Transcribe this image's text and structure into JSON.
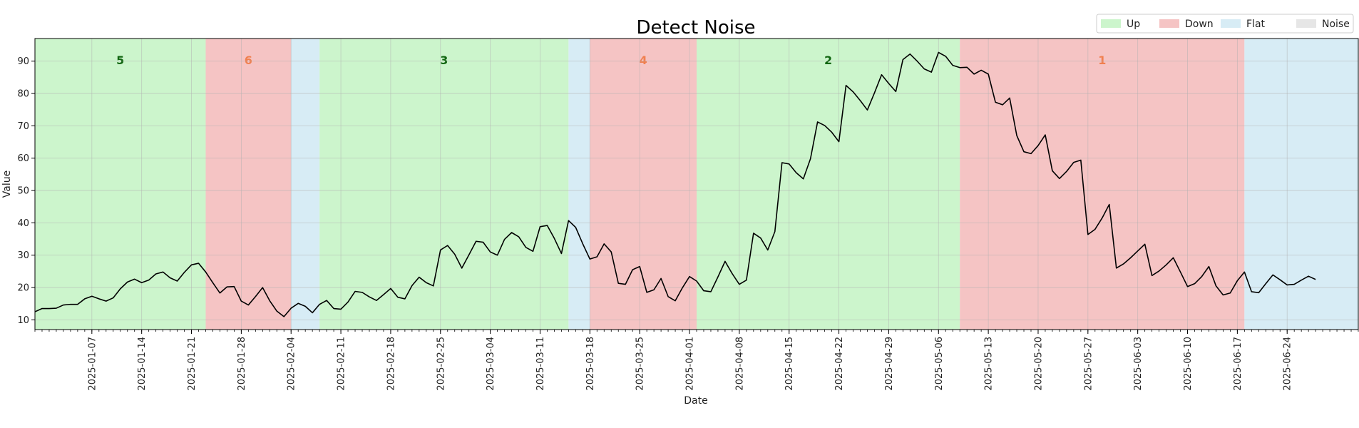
{
  "chart_data": {
    "type": "line",
    "title": "Detect Noise",
    "xlabel": "Date",
    "ylabel": "Value",
    "ylim": [
      7,
      97
    ],
    "xlim": [
      "2024-12-30",
      "2025-07-04"
    ],
    "yticks": [
      10,
      20,
      30,
      40,
      50,
      60,
      70,
      80,
      90
    ],
    "xticks": [
      "2025-01-07",
      "2025-01-14",
      "2025-01-21",
      "2025-01-28",
      "2025-02-04",
      "2025-02-11",
      "2025-02-18",
      "2025-02-25",
      "2025-03-04",
      "2025-03-11",
      "2025-03-18",
      "2025-03-25",
      "2025-04-01",
      "2025-04-08",
      "2025-04-15",
      "2025-04-22",
      "2025-04-29",
      "2025-05-06",
      "2025-05-13",
      "2025-05-20",
      "2025-05-27",
      "2025-06-03",
      "2025-06-10",
      "2025-06-17",
      "2025-06-24"
    ],
    "grid": true,
    "legend": {
      "position": "top-right",
      "entries": [
        {
          "label": "Up",
          "color": "#ccf5cc"
        },
        {
          "label": "Down",
          "color": "#f5c4c4"
        },
        {
          "label": "Flat",
          "color": "#d7ecf5"
        },
        {
          "label": "Noise",
          "color": "#e6e6e6"
        }
      ]
    },
    "regions": [
      {
        "kind": "Up",
        "start": "2024-12-30",
        "end": "2025-01-23",
        "label": "5",
        "color": "#ccf5cc",
        "label_color": "#116611"
      },
      {
        "kind": "Down",
        "start": "2025-01-23",
        "end": "2025-02-04",
        "label": "6",
        "color": "#f5c4c4",
        "label_color": "#f08050"
      },
      {
        "kind": "Flat",
        "start": "2025-02-04",
        "end": "2025-02-08",
        "label": "",
        "color": "#d7ecf5",
        "label_color": ""
      },
      {
        "kind": "Up",
        "start": "2025-02-08",
        "end": "2025-03-15",
        "label": "3",
        "color": "#ccf5cc",
        "label_color": "#116611"
      },
      {
        "kind": "Flat",
        "start": "2025-03-15",
        "end": "2025-03-18",
        "label": "",
        "color": "#d7ecf5",
        "label_color": ""
      },
      {
        "kind": "Down",
        "start": "2025-03-18",
        "end": "2025-04-02",
        "label": "4",
        "color": "#f5c4c4",
        "label_color": "#f08050"
      },
      {
        "kind": "Up",
        "start": "2025-04-02",
        "end": "2025-05-09",
        "label": "2",
        "color": "#ccf5cc",
        "label_color": "#116611"
      },
      {
        "kind": "Down",
        "start": "2025-05-09",
        "end": "2025-06-18",
        "label": "1",
        "color": "#f5c4c4",
        "label_color": "#f08050"
      },
      {
        "kind": "Flat",
        "start": "2025-06-18",
        "end": "2025-07-04",
        "label": "",
        "color": "#d7ecf5",
        "label_color": ""
      }
    ],
    "series": [
      {
        "line_color": "#000000",
        "start_date": "2024-12-30",
        "values": [
          12.5,
          13.5,
          13.5,
          13.6,
          14.6,
          14.8,
          14.8,
          16.5,
          17.3,
          16.5,
          15.8,
          16.8,
          19.6,
          21.7,
          22.6,
          21.5,
          22.3,
          24.2,
          24.8,
          23.0,
          22.0,
          24.7,
          27.0,
          27.5,
          24.8,
          21.5,
          18.3,
          20.2,
          20.3,
          15.8,
          14.6,
          17.2,
          20.0,
          15.9,
          12.7,
          11.0,
          13.6,
          15.1,
          14.2,
          12.2,
          14.8,
          16.0,
          13.5,
          13.3,
          15.5,
          18.8,
          18.5,
          17.1,
          16.0,
          17.8,
          19.7,
          17.0,
          16.5,
          20.6,
          23.2,
          21.5,
          20.5,
          31.6,
          33.0,
          30.3,
          26.0,
          30.1,
          34.3,
          34.0,
          31.0,
          30.0,
          34.9,
          37.0,
          35.7,
          32.4,
          31.2,
          38.8,
          39.2,
          35.2,
          30.5,
          40.7,
          38.6,
          33.5,
          28.8,
          29.5,
          33.5,
          31.0,
          21.3,
          21.0,
          25.5,
          26.5,
          18.5,
          19.3,
          22.8,
          17.2,
          15.9,
          19.9,
          23.4,
          22.0,
          19.0,
          18.7,
          23.3,
          28.1,
          24.3,
          21.0,
          22.3,
          36.8,
          35.3,
          31.6,
          37.3,
          58.6,
          58.2,
          55.5,
          53.6,
          59.8,
          71.2,
          70.1,
          68.0,
          65.1,
          82.5,
          80.5,
          77.8,
          74.9,
          80.2,
          85.8,
          83.1,
          80.6,
          90.5,
          92.2,
          90.0,
          87.6,
          86.6,
          92.7,
          91.5,
          88.7,
          88.0,
          88.1,
          86.0,
          87.2,
          86.0,
          77.3,
          76.5,
          78.6,
          67.0,
          62.0,
          61.4,
          63.9,
          67.2,
          56.1,
          53.7,
          55.9,
          58.7,
          59.4,
          36.4,
          38.0,
          41.5,
          45.7,
          26.0,
          27.3,
          29.2,
          31.3,
          33.4,
          23.7,
          25.1,
          27.0,
          29.2,
          24.8,
          20.3,
          21.2,
          23.4,
          26.5,
          20.5,
          17.7,
          18.3,
          22.1,
          24.8,
          18.7,
          18.4,
          21.2,
          23.9,
          22.4,
          20.8,
          21.0,
          22.3,
          23.5,
          22.5
        ]
      }
    ]
  }
}
